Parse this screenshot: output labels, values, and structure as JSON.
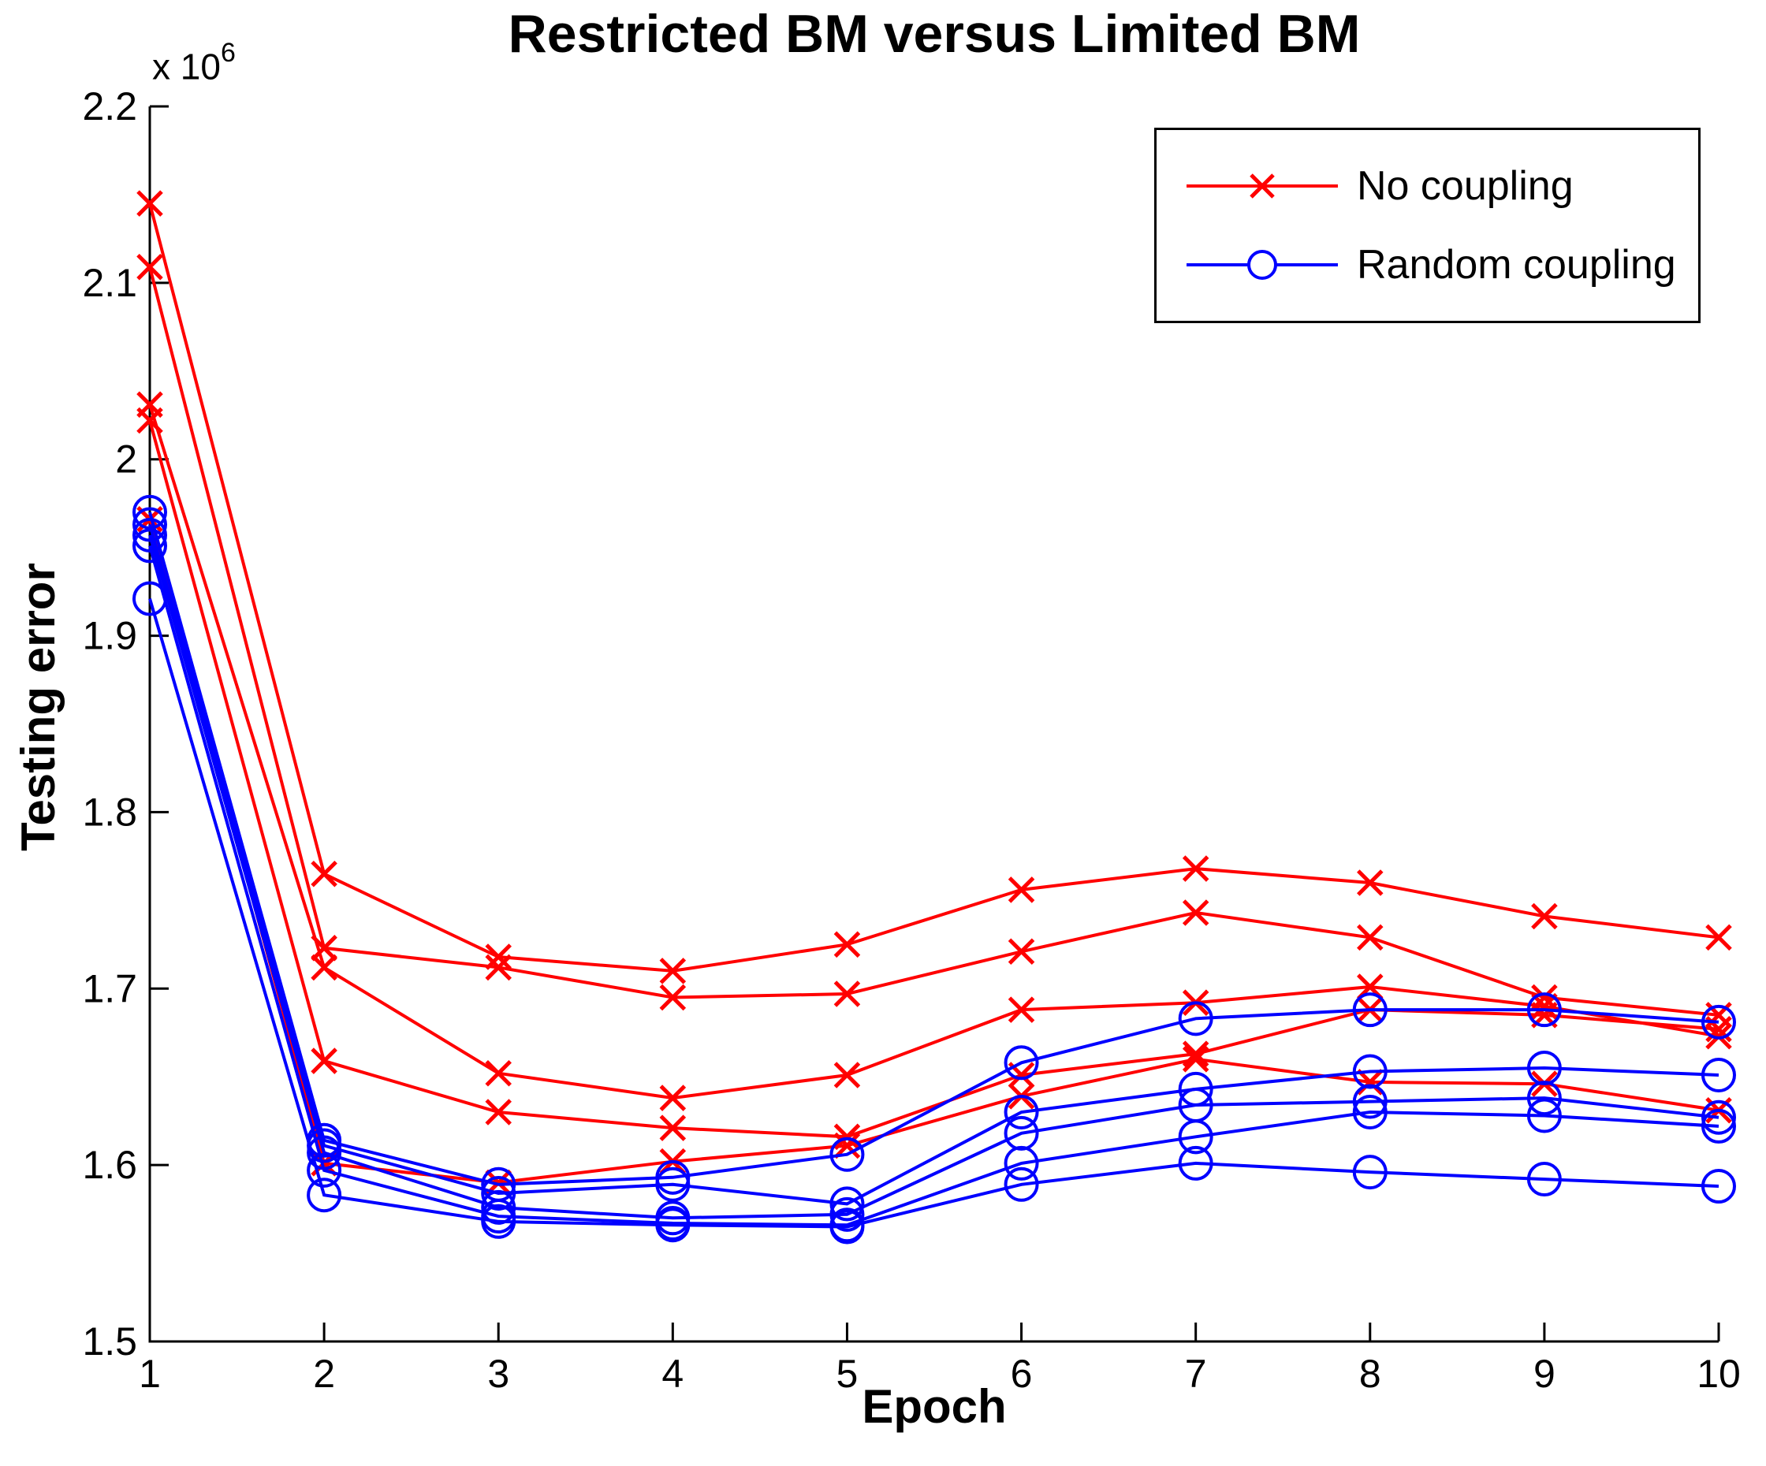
{
  "figure": {
    "title": "Restricted BM versus Limited BM",
    "x_axis": {
      "label": "Epoch"
    },
    "y_axis": {
      "label": "Testing error",
      "scale_prefix": "x 10",
      "scale_exponent": "6"
    },
    "legend": {
      "position": "top-right",
      "items": [
        {
          "label": "No coupling",
          "color": "#FF0000",
          "marker": "x"
        },
        {
          "label": "Random coupling",
          "color": "#0000FF",
          "marker": "o"
        }
      ]
    }
  },
  "chart_data": {
    "type": "line",
    "title": "Restricted BM versus Limited BM",
    "xlabel": "Epoch",
    "ylabel": "Testing error",
    "y_unit_multiplier": 1000000,
    "y_scale_note": "x 10^6",
    "grid": false,
    "legend_position": "top-right",
    "x": [
      1,
      2,
      3,
      4,
      5,
      6,
      7,
      8,
      9,
      10
    ],
    "xlim": [
      1,
      10
    ],
    "ylim": [
      1.5,
      2.2
    ],
    "x_ticks": [
      "1",
      "2",
      "3",
      "4",
      "5",
      "6",
      "7",
      "8",
      "9",
      "10"
    ],
    "x_tick_values": [
      1,
      2,
      3,
      4,
      5,
      6,
      7,
      8,
      9,
      10
    ],
    "y_ticks": [
      "1.5",
      "1.6",
      "1.7",
      "1.8",
      "1.9",
      "2",
      "2.1",
      "2.2"
    ],
    "y_tick_values": [
      1.5,
      1.6,
      1.7,
      1.8,
      1.9,
      2.0,
      2.1,
      2.2
    ],
    "series": [
      {
        "name": "No coupling run 1",
        "group": "No coupling",
        "color": "#FF0000",
        "marker": "x",
        "values": [
          2.145,
          1.765,
          1.718,
          1.71,
          1.725,
          1.756,
          1.768,
          1.76,
          1.741,
          1.729
        ]
      },
      {
        "name": "No coupling run 2",
        "group": "No coupling",
        "color": "#FF0000",
        "marker": "x",
        "values": [
          2.109,
          1.723,
          1.712,
          1.695,
          1.697,
          1.721,
          1.743,
          1.729,
          1.695,
          1.685
        ]
      },
      {
        "name": "No coupling run 3",
        "group": "No coupling",
        "color": "#FF0000",
        "marker": "x",
        "values": [
          2.031,
          1.712,
          1.652,
          1.638,
          1.651,
          1.688,
          1.692,
          1.701,
          1.69,
          1.673
        ]
      },
      {
        "name": "No coupling run 4",
        "group": "No coupling",
        "color": "#FF0000",
        "marker": "x",
        "values": [
          2.022,
          1.659,
          1.63,
          1.621,
          1.616,
          1.651,
          1.663,
          1.688,
          1.685,
          1.677
        ]
      },
      {
        "name": "No coupling run 5",
        "group": "No coupling",
        "color": "#FF0000",
        "marker": "x",
        "values": [
          1.966,
          1.601,
          1.59,
          1.602,
          1.611,
          1.639,
          1.66,
          1.647,
          1.646,
          1.631
        ]
      },
      {
        "name": "Random coupling run 1",
        "group": "Random coupling",
        "color": "#0000FF",
        "marker": "o",
        "values": [
          1.97,
          1.614,
          1.589,
          1.593,
          1.606,
          1.658,
          1.683,
          1.688,
          1.688,
          1.681
        ]
      },
      {
        "name": "Random coupling run 2",
        "group": "Random coupling",
        "color": "#0000FF",
        "marker": "o",
        "values": [
          1.963,
          1.611,
          1.584,
          1.589,
          1.578,
          1.63,
          1.643,
          1.653,
          1.655,
          1.651
        ]
      },
      {
        "name": "Random coupling run 3",
        "group": "Random coupling",
        "color": "#0000FF",
        "marker": "o",
        "values": [
          1.957,
          1.607,
          1.576,
          1.57,
          1.572,
          1.618,
          1.634,
          1.636,
          1.638,
          1.627
        ]
      },
      {
        "name": "Random coupling run 4",
        "group": "Random coupling",
        "color": "#0000FF",
        "marker": "o",
        "values": [
          1.951,
          1.597,
          1.571,
          1.567,
          1.566,
          1.601,
          1.616,
          1.63,
          1.628,
          1.622
        ]
      },
      {
        "name": "Random coupling run 5",
        "group": "Random coupling",
        "color": "#0000FF",
        "marker": "o",
        "values": [
          1.921,
          1.583,
          1.568,
          1.566,
          1.565,
          1.589,
          1.601,
          1.596,
          1.592,
          1.588
        ]
      }
    ]
  }
}
